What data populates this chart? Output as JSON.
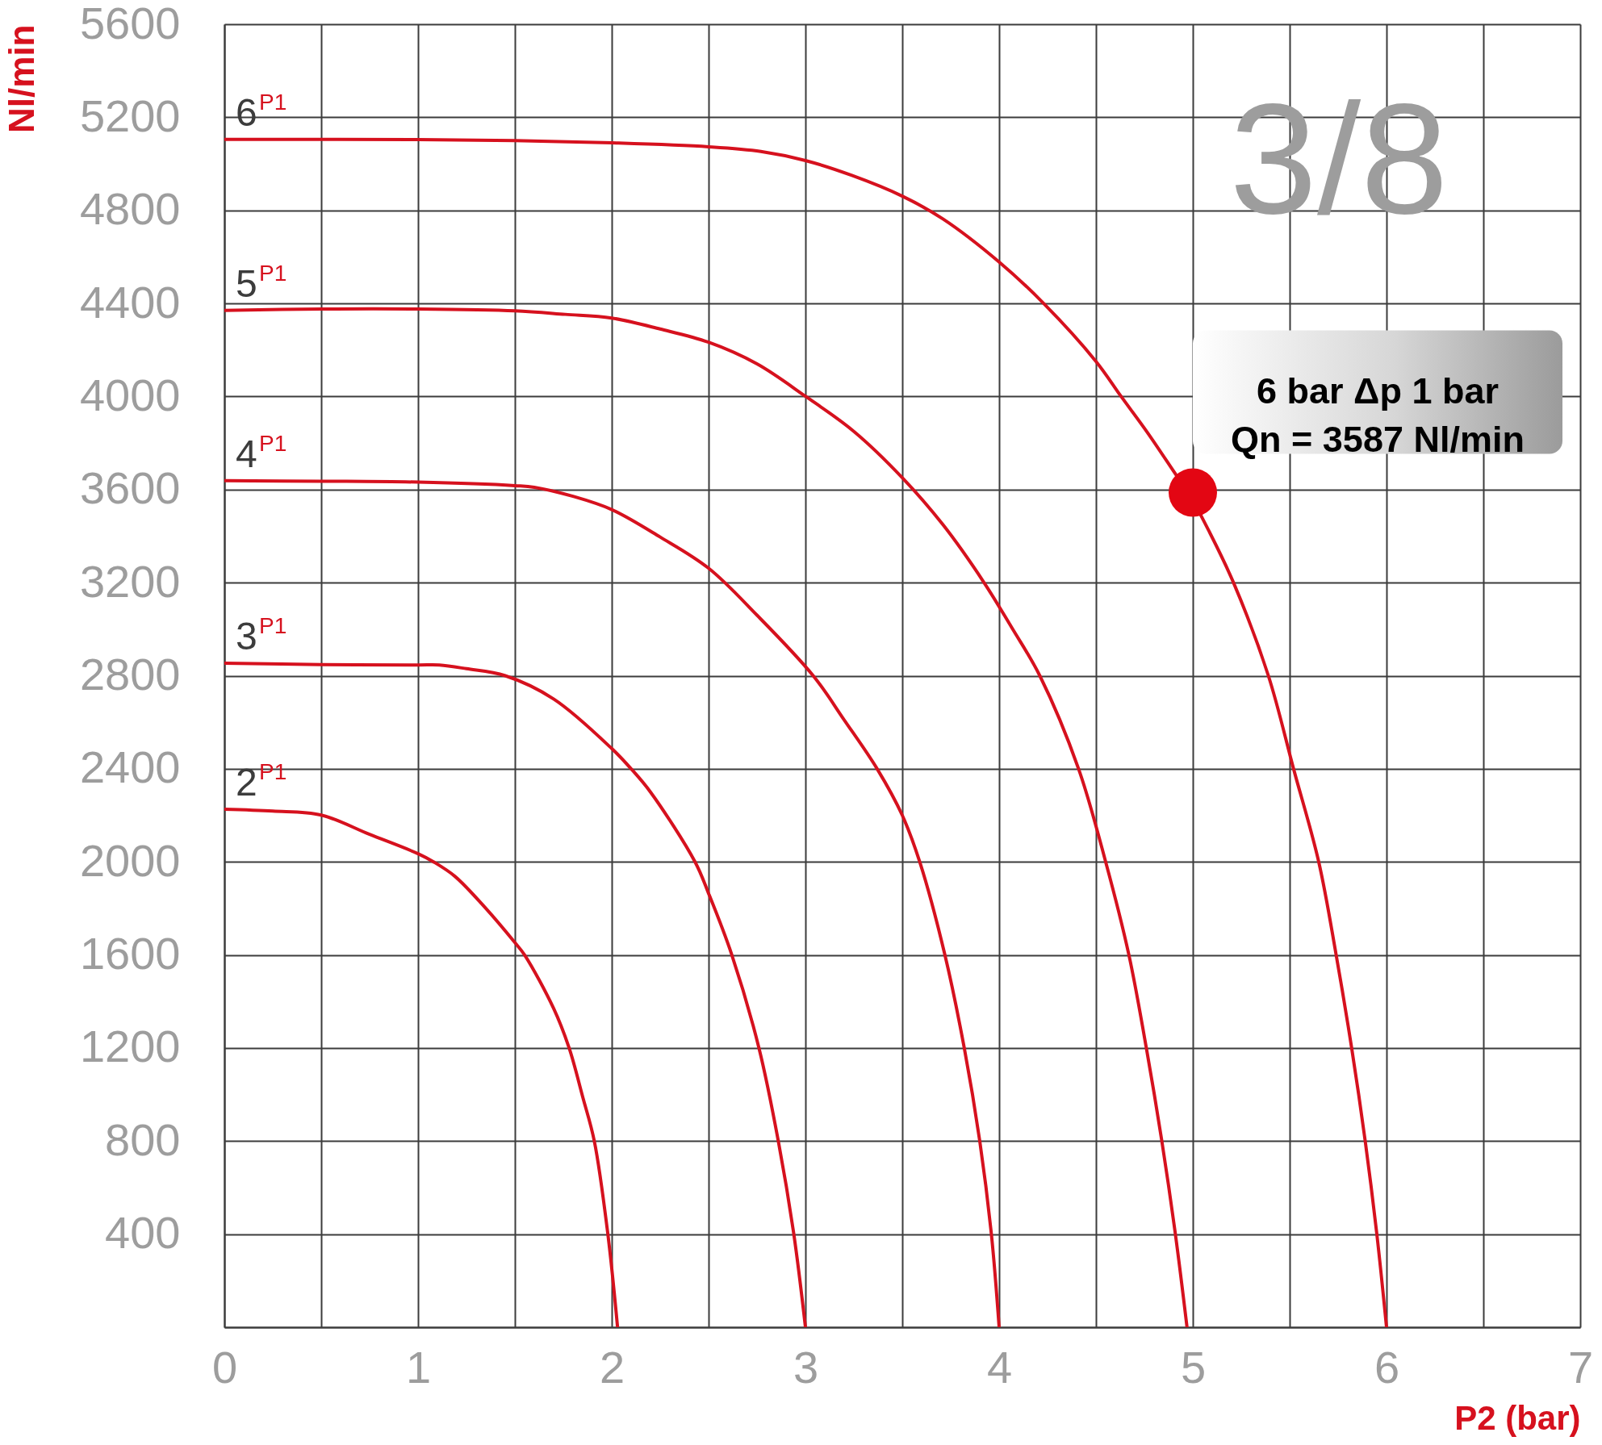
{
  "chart_data": {
    "type": "line",
    "xlabel": "P2 (bar)",
    "ylabel": "Nl/min",
    "xlim": [
      0,
      7
    ],
    "ylim": [
      0,
      5600
    ],
    "xticks": [
      0,
      {
        "value": 0.5,
        "label": null
      },
      1,
      {
        "value": 1.5,
        "label": null
      },
      2,
      {
        "value": 2.5,
        "label": null
      },
      3,
      {
        "value": 3.5,
        "label": null
      },
      4,
      {
        "value": 4.5,
        "label": null
      },
      5,
      {
        "value": 5.5,
        "label": null
      },
      6,
      {
        "value": 6.5,
        "label": null
      },
      7
    ],
    "yticks": [
      {
        "value": 0,
        "label": null
      },
      400,
      800,
      1200,
      1600,
      2000,
      2400,
      2800,
      3200,
      3600,
      4000,
      4400,
      4800,
      5200,
      5600
    ],
    "grid": true,
    "legend": false,
    "marker": "none",
    "line_style": "solid",
    "annotations": [
      "3/8",
      {
        "text": "6 bar Δp 1 bar\nQn = 3587 Nl/min",
        "x": 5,
        "y": 3587
      }
    ],
    "series": [
      {
        "name": "6$^{P1}$",
        "color": "#d6111e",
        "x": [
          0,
          0.5,
          1.0,
          1.5,
          2.0,
          2.5,
          2.77,
          3.0,
          3.24,
          3.5,
          3.71,
          4.0,
          4.23,
          4.5,
          4.63,
          4.77,
          4.92,
          4.98,
          5.08,
          5.21,
          5.39,
          5.52,
          5.65,
          5.74,
          5.82,
          5.89,
          5.95,
          6.0
        ],
        "values": [
          5105,
          5105,
          5104,
          5100,
          5090,
          5073,
          5053,
          5014,
          4950,
          4861,
          4763,
          4578,
          4400,
          4151,
          4000,
          3840,
          3655,
          3583,
          3427,
          3200,
          2800,
          2400,
          2000,
          1600,
          1200,
          800,
          400,
          0
        ]
      },
      {
        "name": "5$^{P1}$",
        "color": "#d6111e",
        "x": [
          0,
          0.5,
          1.0,
          1.5,
          1.76,
          2.0,
          2.25,
          2.5,
          2.75,
          3.0,
          3.25,
          3.5,
          3.71,
          3.92,
          4.07,
          4.21,
          4.41,
          4.55,
          4.67,
          4.76,
          4.84,
          4.91,
          4.97
        ],
        "values": [
          4370,
          4376,
          4376,
          4368,
          4353,
          4337,
          4290,
          4233,
          4140,
          4001,
          3850,
          3651,
          3449,
          3203,
          3000,
          2800,
          2400,
          2000,
          1600,
          1200,
          800,
          400,
          0
        ]
      },
      {
        "name": "4$^{P1}$",
        "color": "#d6111e",
        "x": [
          0,
          0.5,
          1.0,
          1.5,
          1.6,
          1.8,
          2.0,
          2.25,
          2.5,
          2.75,
          3.04,
          3.2,
          3.37,
          3.5,
          3.59,
          3.72,
          3.82,
          3.9,
          3.96,
          4.0
        ],
        "values": [
          3638,
          3636,
          3632,
          3617,
          3610,
          3571,
          3514,
          3396,
          3262,
          3060,
          2800,
          2610,
          2400,
          2200,
          2000,
          1600,
          1200,
          800,
          400,
          0
        ]
      },
      {
        "name": "3$^{P1}$",
        "color": "#d6111e",
        "x": [
          0,
          0.5,
          1.0,
          1.11,
          1.25,
          1.45,
          1.7,
          2.0,
          2.1,
          2.2,
          2.43,
          2.5,
          2.62,
          2.76,
          2.86,
          2.94,
          3.0
        ],
        "values": [
          2854,
          2848,
          2846,
          2846,
          2830,
          2800,
          2700,
          2487,
          2400,
          2300,
          2000,
          1864,
          1600,
          1200,
          800,
          400,
          0
        ]
      },
      {
        "name": "2$^{P1}$",
        "color": "#d6111e",
        "x": [
          0,
          0.25,
          0.5,
          0.75,
          1.0,
          1.08,
          1.19,
          1.35,
          1.5,
          1.55,
          1.7,
          1.78,
          1.85,
          1.91,
          1.98,
          2.03
        ],
        "values": [
          2226,
          2218,
          2201,
          2118,
          2035,
          2000,
          1938,
          1800,
          1653,
          1600,
          1370,
          1200,
          990,
          800,
          400,
          0
        ]
      },
      {
        "type": "scatter",
        "color": "#e30613",
        "marker": "circle",
        "x": [
          5
        ],
        "values": [
          3587
        ]
      }
    ]
  }
}
